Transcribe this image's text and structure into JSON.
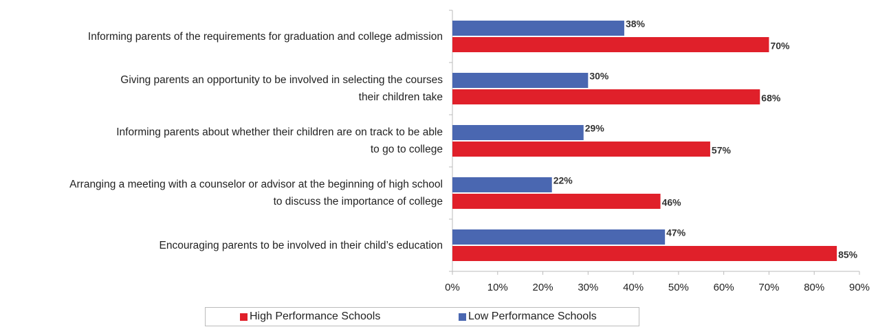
{
  "chart_data": {
    "type": "hbar",
    "categories": [
      "Informing parents of the requirements for graduation and college admission",
      "Giving parents an opportunity to be involved in selecting the courses\ntheir children take",
      "Informing parents about whether their children are on track to be able\nto go to college",
      "Arranging a meeting with a counselor or advisor at the beginning of high school\nto discuss the importance of college",
      "Encouraging parents to be  involved in their child’s education"
    ],
    "series": [
      {
        "name": "High Performance Schools",
        "color": "#e0202a",
        "values": [
          70,
          68,
          57,
          46,
          85
        ],
        "value_labels": [
          "70%",
          "68%",
          "57%",
          "46%",
          "85%"
        ]
      },
      {
        "name": "Low Performance Schools",
        "color": "#4a67b1",
        "values": [
          38,
          30,
          29,
          22,
          47
        ],
        "value_labels": [
          "38%",
          "30%",
          "29%",
          "22%",
          "47%"
        ]
      }
    ],
    "xlim": [
      0,
      90
    ],
    "xticks": [
      {
        "value": 0,
        "label": "0%"
      },
      {
        "value": 10,
        "label": "10%"
      },
      {
        "value": 20,
        "label": "20%"
      },
      {
        "value": 30,
        "label": "30%"
      },
      {
        "value": 40,
        "label": "40%"
      },
      {
        "value": 50,
        "label": "50%"
      },
      {
        "value": 60,
        "label": "60%"
      },
      {
        "value": 70,
        "label": "70%"
      },
      {
        "value": 80,
        "label": "80%"
      },
      {
        "value": 90,
        "label": "90%"
      }
    ]
  }
}
